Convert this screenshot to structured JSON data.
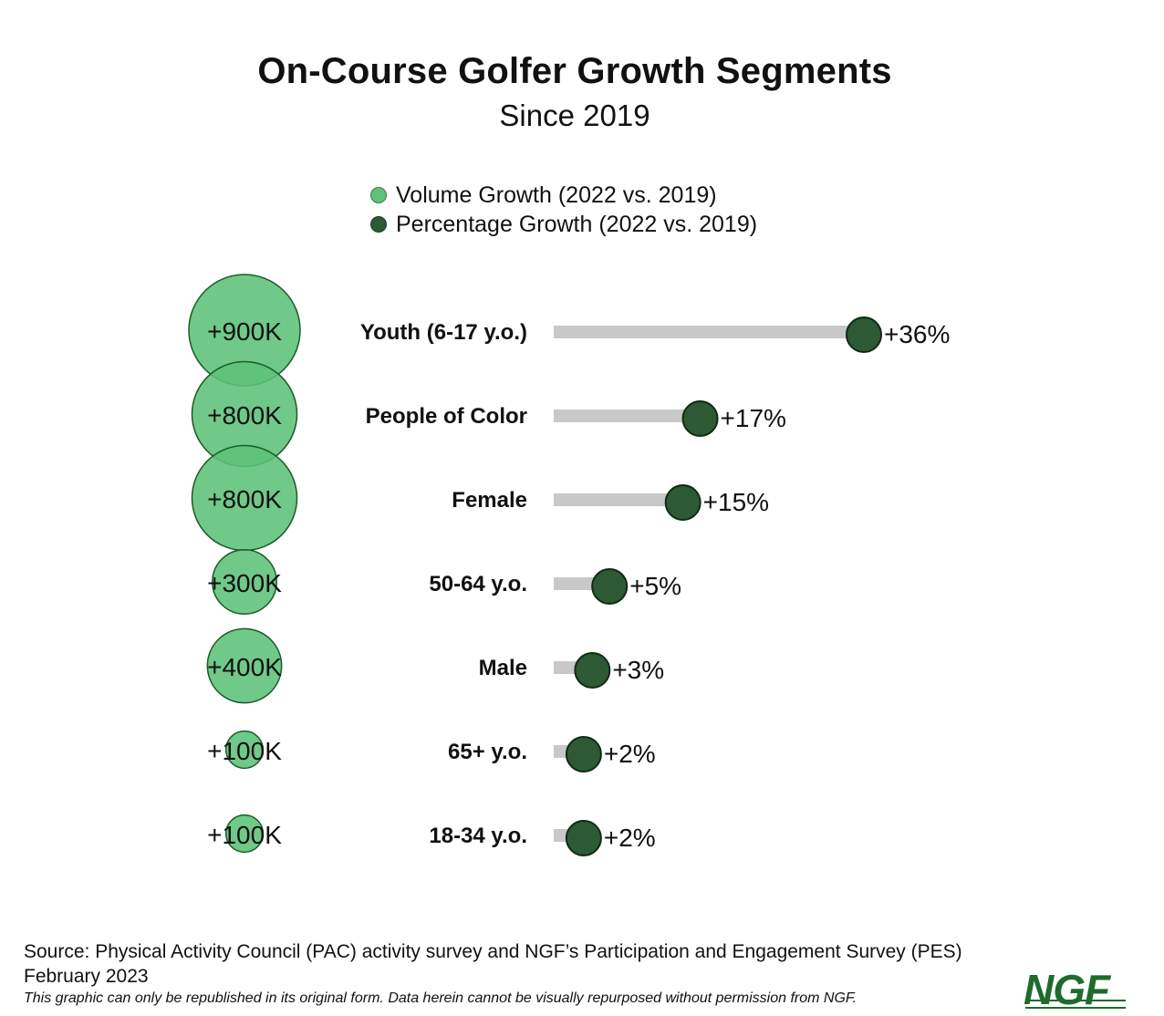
{
  "colors": {
    "volume": "#5cc277",
    "volume_stroke": "#1b5a2a",
    "percentage": "#2d5a35",
    "bar": "#c8c8c8",
    "logo": "#1e6b2c"
  },
  "legend": {
    "volume_label": "Volume Growth (2022 vs. 2019)",
    "percentage_label": "Percentage Growth (2022 vs. 2019)"
  },
  "chart_data": {
    "type": "bubble-lollipop",
    "title": "On-Course Golfer Growth Segments",
    "subtitle": "Since 2019",
    "percent_axis_max": 36,
    "volume_max": 900000,
    "categories": [
      "Youth (6-17 y.o.)",
      "People of Color",
      "Female",
      "50-64 y.o.",
      "Male",
      "65+ y.o.",
      "18-34 y.o."
    ],
    "series": [
      {
        "name": "Volume Growth (2022 vs. 2019)",
        "values": [
          900000,
          800000,
          800000,
          300000,
          400000,
          100000,
          100000
        ],
        "labels": [
          "+900K",
          "+800K",
          "+800K",
          "+300K",
          "+400K",
          "+100K",
          "+100K"
        ]
      },
      {
        "name": "Percentage Growth (2022 vs. 2019)",
        "values": [
          36,
          17,
          15,
          5,
          3,
          2,
          2
        ],
        "labels": [
          "+36%",
          "+17%",
          "+15%",
          "+5%",
          "+3%",
          "+2%",
          "+2%"
        ]
      }
    ]
  },
  "footer": {
    "source": "Source: Physical Activity Council (PAC) activity survey and NGF’s Participation and Engagement Survey (PES)",
    "date": "February 2023",
    "disclaimer": "This graphic can only be republished in its original form. Data herein cannot be visually repurposed without permission from NGF."
  },
  "logo_text": "NGF"
}
